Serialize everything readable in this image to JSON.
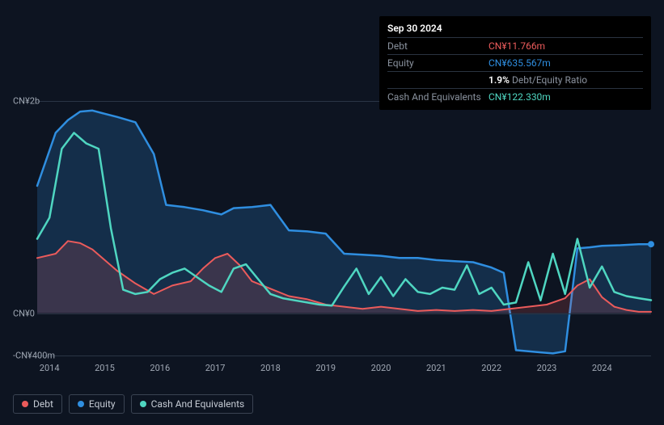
{
  "tooltip": {
    "date": "Sep 30 2024",
    "rows": [
      {
        "label": "Debt",
        "value": "CN¥11.766m",
        "color": "#eb5b5b"
      },
      {
        "label": "Equity",
        "value": "CN¥635.567m",
        "color": "#2f8ee0"
      },
      {
        "label": "",
        "ratio_pct": "1.9%",
        "ratio_label": "Debt/Equity Ratio"
      },
      {
        "label": "Cash And Equivalents",
        "value": "CN¥122.330m",
        "color": "#4fd6c1"
      }
    ]
  },
  "chart": {
    "type": "area-line",
    "background": "#0d1421",
    "grid_color": "#2a3545",
    "y_axis": {
      "min": -400,
      "max": 2000,
      "ticks": [
        {
          "v": 2000,
          "label": "CN¥2b"
        },
        {
          "v": 0,
          "label": "CN¥0"
        },
        {
          "v": -400,
          "label": "-CN¥400m"
        }
      ]
    },
    "x_axis": {
      "labels": [
        "2014",
        "2015",
        "2016",
        "2017",
        "2018",
        "2019",
        "2020",
        "2021",
        "2022",
        "2023",
        "2024"
      ],
      "positions": [
        0.02,
        0.11,
        0.2,
        0.29,
        0.38,
        0.47,
        0.56,
        0.65,
        0.74,
        0.83,
        0.92
      ]
    },
    "series": [
      {
        "name": "Equity",
        "color": "#2f8ee0",
        "fill": "rgba(47,142,224,0.22)",
        "line_width": 2.5,
        "points": [
          [
            0.0,
            1200
          ],
          [
            0.03,
            1700
          ],
          [
            0.05,
            1820
          ],
          [
            0.07,
            1900
          ],
          [
            0.09,
            1910
          ],
          [
            0.11,
            1880
          ],
          [
            0.13,
            1850
          ],
          [
            0.16,
            1800
          ],
          [
            0.19,
            1500
          ],
          [
            0.21,
            1020
          ],
          [
            0.24,
            1000
          ],
          [
            0.27,
            970
          ],
          [
            0.3,
            930
          ],
          [
            0.32,
            990
          ],
          [
            0.35,
            1000
          ],
          [
            0.38,
            1020
          ],
          [
            0.41,
            780
          ],
          [
            0.44,
            770
          ],
          [
            0.47,
            750
          ],
          [
            0.5,
            560
          ],
          [
            0.53,
            550
          ],
          [
            0.56,
            540
          ],
          [
            0.59,
            520
          ],
          [
            0.62,
            520
          ],
          [
            0.65,
            500
          ],
          [
            0.68,
            490
          ],
          [
            0.71,
            480
          ],
          [
            0.74,
            430
          ],
          [
            0.76,
            380
          ],
          [
            0.78,
            -350
          ],
          [
            0.8,
            -360
          ],
          [
            0.82,
            -370
          ],
          [
            0.84,
            -380
          ],
          [
            0.86,
            -360
          ],
          [
            0.88,
            610
          ],
          [
            0.9,
            620
          ],
          [
            0.92,
            635
          ],
          [
            0.95,
            640
          ],
          [
            0.98,
            650
          ],
          [
            1.0,
            650
          ]
        ]
      },
      {
        "name": "Debt",
        "color": "#eb5b5b",
        "fill": "rgba(235,91,91,0.18)",
        "line_width": 2,
        "points": [
          [
            0.0,
            520
          ],
          [
            0.03,
            560
          ],
          [
            0.05,
            680
          ],
          [
            0.07,
            660
          ],
          [
            0.09,
            600
          ],
          [
            0.11,
            500
          ],
          [
            0.13,
            400
          ],
          [
            0.16,
            280
          ],
          [
            0.19,
            180
          ],
          [
            0.22,
            260
          ],
          [
            0.25,
            300
          ],
          [
            0.27,
            420
          ],
          [
            0.29,
            520
          ],
          [
            0.31,
            560
          ],
          [
            0.33,
            450
          ],
          [
            0.35,
            300
          ],
          [
            0.38,
            230
          ],
          [
            0.41,
            160
          ],
          [
            0.44,
            130
          ],
          [
            0.47,
            80
          ],
          [
            0.5,
            60
          ],
          [
            0.53,
            40
          ],
          [
            0.56,
            60
          ],
          [
            0.59,
            40
          ],
          [
            0.62,
            20
          ],
          [
            0.65,
            30
          ],
          [
            0.68,
            20
          ],
          [
            0.71,
            30
          ],
          [
            0.74,
            20
          ],
          [
            0.77,
            40
          ],
          [
            0.8,
            60
          ],
          [
            0.83,
            80
          ],
          [
            0.86,
            140
          ],
          [
            0.88,
            260
          ],
          [
            0.9,
            320
          ],
          [
            0.92,
            150
          ],
          [
            0.94,
            60
          ],
          [
            0.96,
            30
          ],
          [
            0.98,
            12
          ],
          [
            1.0,
            12
          ]
        ]
      },
      {
        "name": "Cash And Equivalents",
        "color": "#4fd6c1",
        "fill": "none",
        "line_width": 2.5,
        "points": [
          [
            0.0,
            700
          ],
          [
            0.02,
            900
          ],
          [
            0.04,
            1550
          ],
          [
            0.06,
            1700
          ],
          [
            0.08,
            1600
          ],
          [
            0.1,
            1550
          ],
          [
            0.12,
            800
          ],
          [
            0.14,
            220
          ],
          [
            0.16,
            180
          ],
          [
            0.18,
            200
          ],
          [
            0.2,
            320
          ],
          [
            0.22,
            380
          ],
          [
            0.24,
            420
          ],
          [
            0.26,
            340
          ],
          [
            0.28,
            260
          ],
          [
            0.3,
            200
          ],
          [
            0.32,
            420
          ],
          [
            0.34,
            460
          ],
          [
            0.36,
            320
          ],
          [
            0.38,
            180
          ],
          [
            0.4,
            140
          ],
          [
            0.42,
            120
          ],
          [
            0.44,
            100
          ],
          [
            0.46,
            80
          ],
          [
            0.48,
            70
          ],
          [
            0.5,
            250
          ],
          [
            0.52,
            420
          ],
          [
            0.54,
            180
          ],
          [
            0.56,
            340
          ],
          [
            0.58,
            160
          ],
          [
            0.6,
            320
          ],
          [
            0.62,
            200
          ],
          [
            0.64,
            180
          ],
          [
            0.66,
            240
          ],
          [
            0.68,
            220
          ],
          [
            0.7,
            450
          ],
          [
            0.72,
            180
          ],
          [
            0.74,
            240
          ],
          [
            0.76,
            80
          ],
          [
            0.78,
            100
          ],
          [
            0.8,
            480
          ],
          [
            0.82,
            120
          ],
          [
            0.84,
            560
          ],
          [
            0.86,
            180
          ],
          [
            0.88,
            700
          ],
          [
            0.9,
            240
          ],
          [
            0.92,
            440
          ],
          [
            0.94,
            200
          ],
          [
            0.96,
            160
          ],
          [
            0.98,
            140
          ],
          [
            1.0,
            122
          ]
        ]
      }
    ]
  },
  "legend": {
    "items": [
      {
        "label": "Debt",
        "color": "#eb5b5b"
      },
      {
        "label": "Equity",
        "color": "#2f8ee0"
      },
      {
        "label": "Cash And Equivalents",
        "color": "#4fd6c1"
      }
    ]
  }
}
